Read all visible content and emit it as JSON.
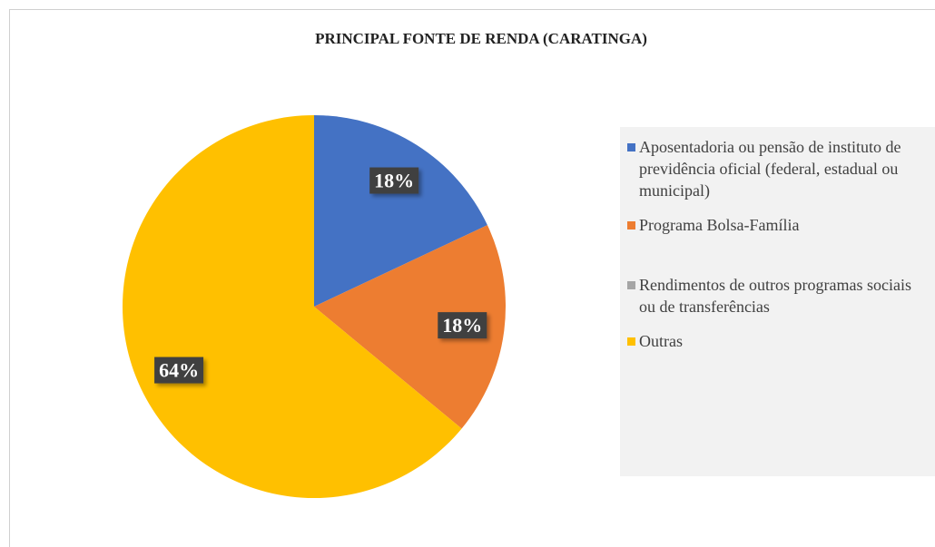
{
  "chart_data": {
    "type": "pie",
    "title": "PRINCIPAL FONTE DE RENDA (CARATINGA)",
    "categories": [
      "Aposentadoria ou pensão de instituto de previdência oficial (federal, estadual ou municipal)",
      "Programa Bolsa-Família",
      "Rendimentos de outros programas sociais ou de transferências",
      "Outras"
    ],
    "values": [
      18,
      18,
      0,
      64
    ],
    "value_labels": [
      "18%",
      "18%",
      null,
      "64%"
    ],
    "colors": [
      "#4472c4",
      "#ed7d31",
      "#a5a5a5",
      "#ffc000"
    ]
  }
}
